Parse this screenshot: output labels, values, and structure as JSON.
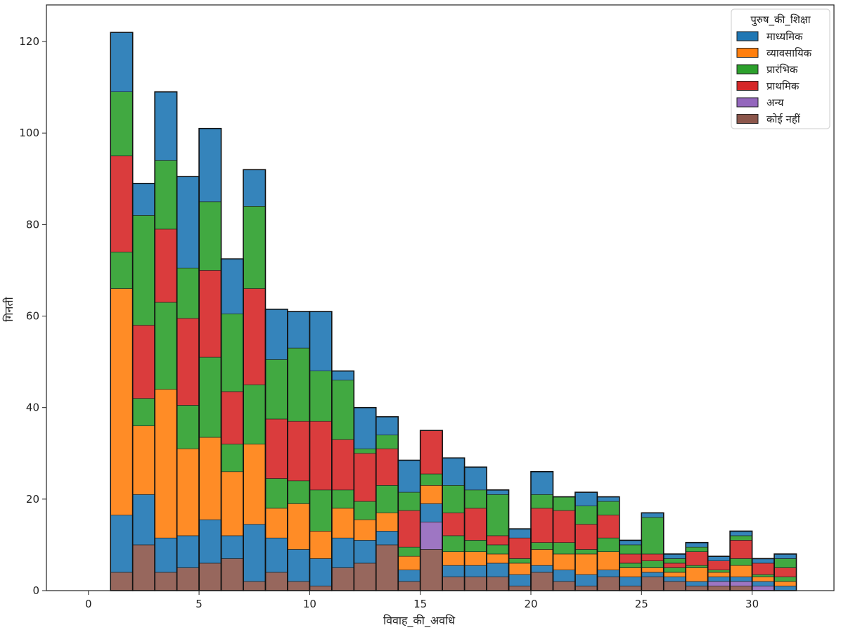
{
  "chart_data": {
    "type": "bar",
    "stacked": true,
    "xlabel": "विवाह_की_अवधि",
    "ylabel": "गिनती",
    "xlim": [
      -1.9,
      33.7
    ],
    "ylim": [
      0,
      128
    ],
    "xticks": [
      0,
      5,
      10,
      15,
      20,
      25,
      30
    ],
    "yticks": [
      0,
      20,
      40,
      60,
      80,
      100,
      120
    ],
    "bin_edges": [
      1,
      2,
      3,
      4,
      5,
      6,
      7,
      8,
      9,
      10,
      11,
      12,
      13,
      14,
      15,
      16,
      17,
      18,
      19,
      20,
      21,
      22,
      23,
      24,
      25,
      26,
      27,
      28,
      29,
      30,
      31,
      32
    ],
    "legend": {
      "title": "पुरुष_की_शिक्षा",
      "position": "top-right"
    },
    "series": [
      {
        "name": "कोई नहीं",
        "color": "#8c564b",
        "values": [
          4,
          10,
          4,
          5,
          6,
          7,
          2,
          4,
          2,
          1,
          5,
          6,
          10,
          2,
          9,
          3,
          3,
          3,
          1,
          4,
          2,
          1,
          3,
          1,
          3,
          2,
          1,
          1,
          1,
          0,
          0
        ]
      },
      {
        "name": "अन्य",
        "color": "#9467bd",
        "values": [
          0,
          0,
          0,
          0,
          0,
          0,
          0,
          0,
          0,
          0,
          0,
          0,
          0,
          0,
          6,
          0,
          0,
          0,
          0,
          0,
          0,
          0,
          0,
          0,
          0,
          0,
          0,
          1,
          1,
          1,
          0
        ]
      },
      {
        "name": "माध्यमिक",
        "color": "#1f77b4",
        "values": [
          12.5,
          11,
          7.5,
          7,
          9.5,
          5,
          12.5,
          7.5,
          7,
          6,
          6.5,
          5,
          3,
          2.5,
          4,
          2.5,
          2.5,
          3,
          2.5,
          1.5,
          2.5,
          2.5,
          1.5,
          2,
          1,
          1,
          1,
          1,
          1,
          1,
          1
        ]
      },
      {
        "name": "व्यावसायिक",
        "color": "#ff7f0e",
        "values": [
          49.5,
          15,
          32.5,
          19,
          18,
          14,
          17.5,
          6.5,
          10,
          6,
          6.5,
          4.5,
          4,
          3,
          4,
          3,
          3,
          2,
          2.5,
          3.5,
          3.5,
          4.5,
          4,
          2,
          1,
          1,
          3,
          1,
          2.5,
          1,
          1
        ]
      },
      {
        "name": "प्रारंभिक",
        "color": "#2ca02c",
        "values": [
          8,
          6,
          19,
          9.5,
          17.5,
          6,
          13,
          6.5,
          5,
          9,
          4,
          4,
          6,
          2,
          2.5,
          3.5,
          2.5,
          2,
          1,
          1.5,
          2.5,
          1,
          3,
          1,
          1.5,
          1,
          0.5,
          0.5,
          1.5,
          0.5,
          1
        ]
      },
      {
        "name": "प्राथमिक",
        "color": "#d62728",
        "values": [
          21,
          16,
          16,
          19,
          19,
          11.5,
          21,
          13,
          13,
          15,
          11,
          10.5,
          8,
          8,
          9.5,
          5,
          7,
          2,
          4.5,
          7.5,
          7,
          5.5,
          5,
          2,
          1.5,
          1,
          3,
          2,
          4,
          2.5,
          2
        ]
      },
      {
        "name": "प्रारंभिक",
        "color": "#2ca02c",
        "values": [
          14,
          24,
          15,
          11,
          15,
          17,
          18,
          13,
          16,
          11,
          13,
          1,
          3,
          4,
          0,
          6,
          4,
          9,
          0,
          3,
          3,
          4,
          3,
          2,
          8,
          1,
          1,
          0,
          1,
          0,
          2
        ]
      },
      {
        "name": "माध्यमिक",
        "color": "#1f77b4",
        "values": [
          13,
          7,
          15,
          20,
          16,
          12,
          8,
          11,
          8,
          13,
          2,
          9,
          4,
          7,
          0,
          6,
          5,
          1,
          2,
          5,
          0,
          3,
          1,
          1,
          1,
          1,
          1,
          1,
          1,
          1,
          1
        ]
      }
    ]
  }
}
